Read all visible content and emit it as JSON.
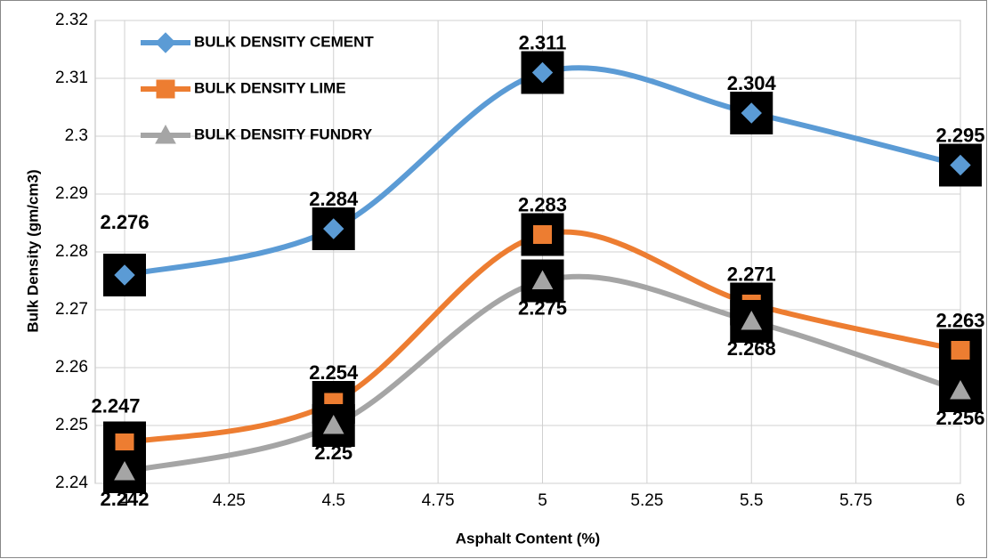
{
  "chart_data": {
    "type": "line",
    "x_label": "Asphalt Content (%)",
    "y_label": "Bulk Density (gm/cm3)",
    "x": [
      4,
      4.5,
      5,
      5.5,
      6
    ],
    "series": [
      {
        "name": "BULK DENSITY  CEMENT",
        "color": "#5b9bd5",
        "marker": "diamond",
        "values": [
          2.276,
          2.284,
          2.311,
          2.304,
          2.295
        ]
      },
      {
        "name": "BULK DENSITY  LIME",
        "color": "#ed7d31",
        "marker": "square",
        "values": [
          2.247,
          2.254,
          2.283,
          2.271,
          2.263
        ]
      },
      {
        "name": "BULK DENSITY  FUNDRY",
        "color": "#a5a5a5",
        "marker": "triangle",
        "values": [
          2.242,
          2.25,
          2.275,
          2.268,
          2.256
        ]
      }
    ],
    "xlim": [
      4,
      6
    ],
    "xticks": [
      4,
      4.25,
      4.5,
      4.75,
      5,
      5.25,
      5.5,
      5.75,
      6
    ],
    "ylim": [
      2.24,
      2.32
    ],
    "yticks": [
      2.24,
      2.25,
      2.26,
      2.27,
      2.28,
      2.29,
      2.3,
      2.31,
      2.32
    ],
    "grid": true,
    "legend": "upper left"
  }
}
